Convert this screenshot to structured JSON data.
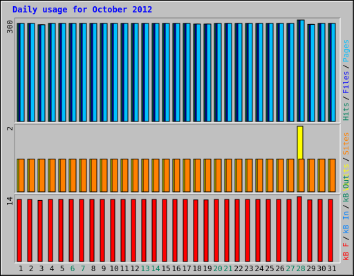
{
  "title": "Daily usage for October 2012",
  "legend_separator": "/",
  "categories": [
    "1",
    "2",
    "3",
    "4",
    "5",
    "6",
    "7",
    "8",
    "9",
    "10",
    "11",
    "12",
    "13",
    "14",
    "15",
    "16",
    "17",
    "18",
    "19",
    "20",
    "21",
    "22",
    "23",
    "24",
    "25",
    "26",
    "27",
    "28",
    "29",
    "30",
    "31"
  ],
  "category_colors": [
    "#000000",
    "#000000",
    "#000000",
    "#000000",
    "#000000",
    "#00805c",
    "#00805c",
    "#000000",
    "#000000",
    "#000000",
    "#000000",
    "#000000",
    "#00805c",
    "#00805c",
    "#000000",
    "#000000",
    "#000000",
    "#000000",
    "#000000",
    "#00805c",
    "#00805c",
    "#000000",
    "#000000",
    "#000000",
    "#000000",
    "#000000",
    "#00805c",
    "#00805c",
    "#000000",
    "#000000",
    "#000000"
  ],
  "chart_data": [
    {
      "type": "bar",
      "ylim": [
        0,
        300
      ],
      "yticks": [
        300
      ],
      "series": [
        {
          "name": "Hits",
          "color": "#00805c",
          "values": [
            290,
            290,
            286,
            290,
            290,
            290,
            290,
            290,
            290,
            290,
            290,
            290,
            290,
            290,
            290,
            290,
            290,
            288,
            288,
            290,
            290,
            290,
            290,
            290,
            290,
            290,
            290,
            300,
            287,
            290,
            290
          ]
        },
        {
          "name": "Files",
          "color": "#0000ff",
          "values": [
            290,
            290,
            286,
            290,
            290,
            290,
            290,
            290,
            290,
            290,
            290,
            290,
            290,
            290,
            290,
            290,
            290,
            288,
            288,
            290,
            290,
            290,
            290,
            290,
            290,
            290,
            290,
            300,
            287,
            290,
            290
          ]
        },
        {
          "name": "Pages",
          "color": "#00c0ff",
          "values": [
            290,
            290,
            286,
            290,
            290,
            290,
            290,
            290,
            290,
            290,
            290,
            290,
            290,
            290,
            290,
            290,
            290,
            288,
            288,
            290,
            290,
            290,
            290,
            290,
            290,
            290,
            290,
            300,
            287,
            290,
            290
          ]
        }
      ]
    },
    {
      "type": "bar",
      "ylim": [
        0,
        2
      ],
      "yticks": [
        2
      ],
      "series": [
        {
          "name": "Visits",
          "color": "#ffff00",
          "values": [
            1,
            1,
            1,
            1,
            1,
            1,
            1,
            1,
            1,
            1,
            1,
            1,
            1,
            1,
            1,
            1,
            1,
            1,
            1,
            1,
            1,
            1,
            1,
            1,
            1,
            1,
            1,
            2,
            1,
            1,
            1
          ]
        },
        {
          "name": "Sites",
          "color": "#ff8000",
          "values": [
            1,
            1,
            1,
            1,
            1,
            1,
            1,
            1,
            1,
            1,
            1,
            1,
            1,
            1,
            1,
            1,
            1,
            1,
            1,
            1,
            1,
            1,
            1,
            1,
            1,
            1,
            1,
            1,
            1,
            1,
            1
          ]
        }
      ]
    },
    {
      "type": "bar",
      "ylim": [
        0,
        14
      ],
      "yticks": [
        14
      ],
      "series": [
        {
          "name": "kB F",
          "color": "#ff0000",
          "values": [
            13.4,
            13.4,
            13.2,
            13.4,
            13.4,
            13.4,
            13.4,
            13.4,
            13.4,
            13.4,
            13.4,
            13.4,
            13.4,
            13.4,
            13.4,
            13.4,
            13.4,
            13.3,
            13.3,
            13.4,
            13.4,
            13.4,
            13.4,
            13.4,
            13.4,
            13.4,
            13.4,
            14,
            13.3,
            13.4,
            13.4
          ]
        },
        {
          "name": "kB In",
          "color": "#0080ff",
          "values": [
            0,
            0,
            0,
            0,
            0,
            0,
            0,
            0,
            0,
            0,
            0,
            0,
            0,
            0,
            0,
            0,
            0,
            0,
            0,
            0,
            0,
            0,
            0,
            0,
            0,
            0,
            0,
            0,
            0,
            0,
            0
          ]
        },
        {
          "name": "kB Out",
          "color": "#00805c",
          "values": [
            0,
            0,
            0,
            0,
            0,
            0,
            0,
            0,
            0,
            0,
            0,
            0,
            0,
            0,
            0,
            0,
            0,
            0,
            0,
            0,
            0,
            0,
            0,
            0,
            0,
            0,
            0,
            0,
            0,
            0,
            0
          ]
        }
      ]
    }
  ]
}
